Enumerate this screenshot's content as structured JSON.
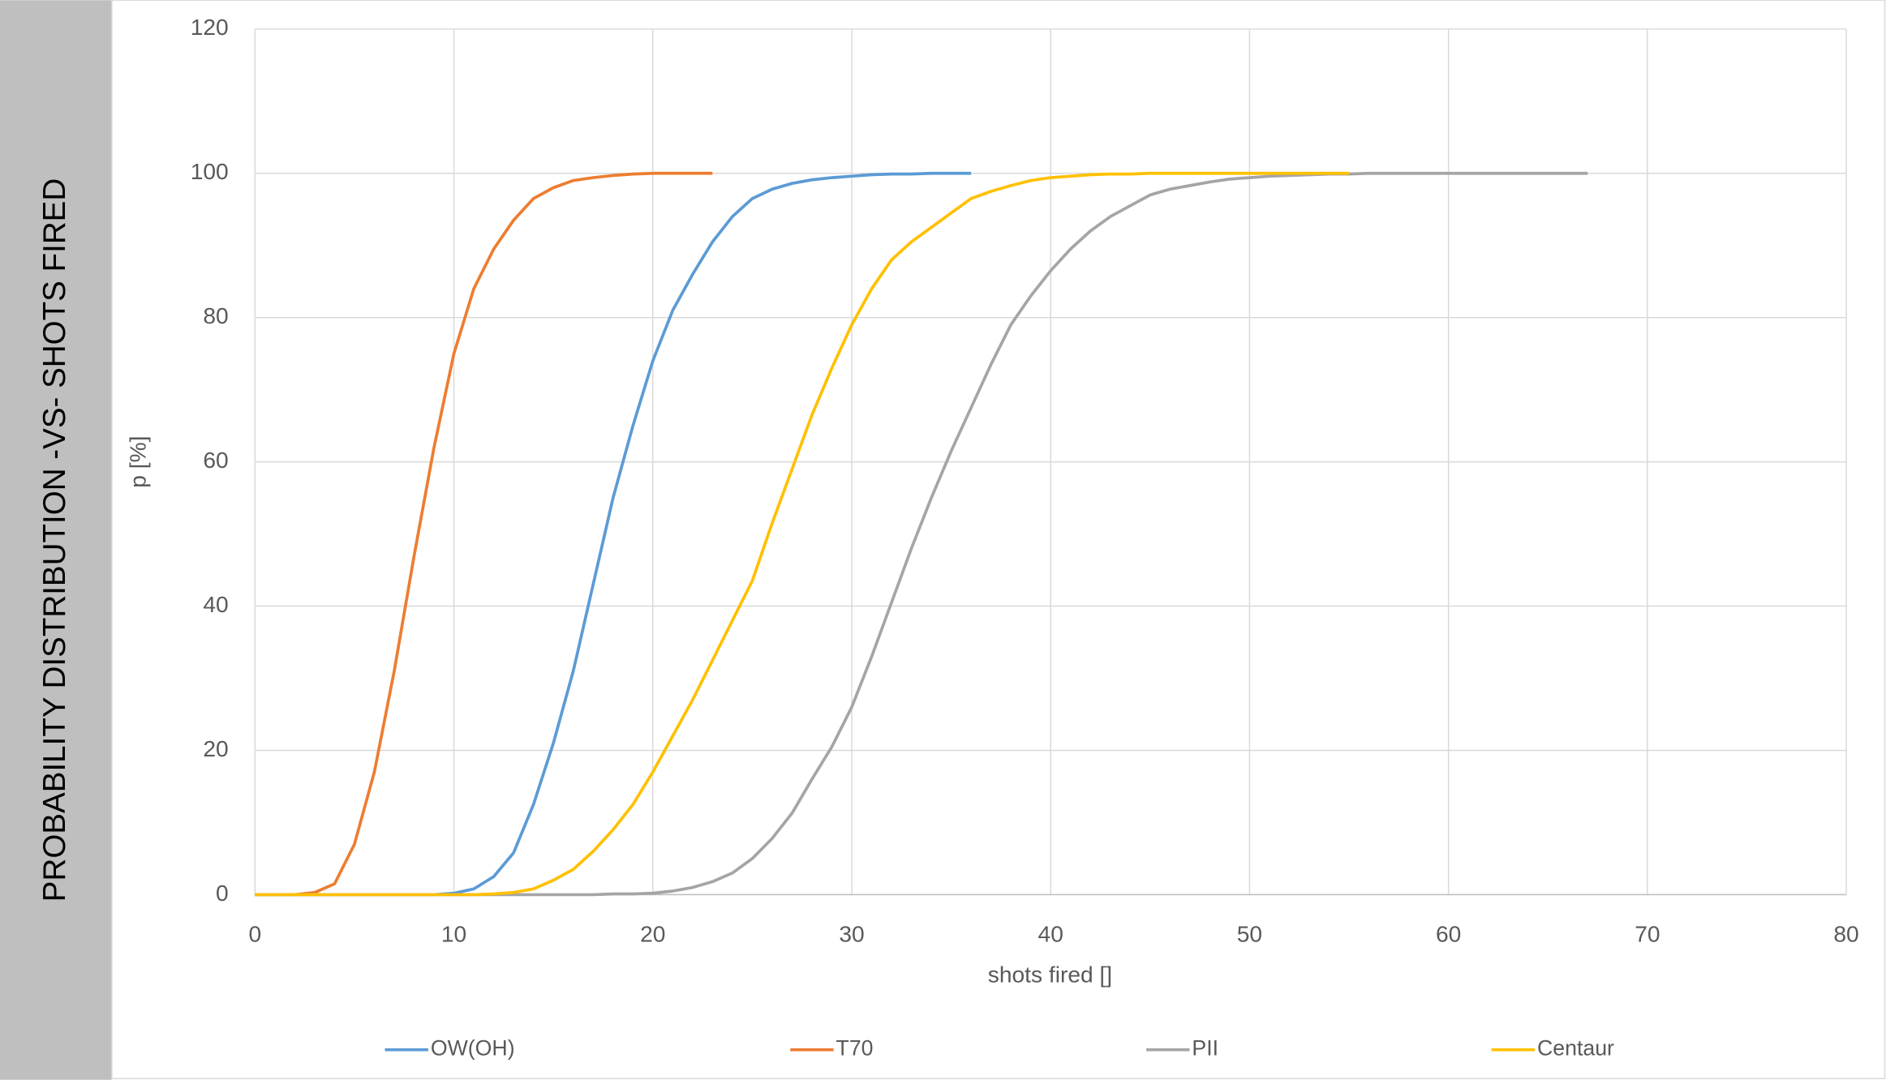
{
  "chart_data": {
    "type": "line",
    "title": "PROBABILITY DISTRIBUTION -VS- SHOTS FIRED",
    "xlabel": "shots fired []",
    "ylabel": "p [%]",
    "xlim": [
      0,
      80
    ],
    "xticks": [
      0,
      10,
      20,
      30,
      40,
      50,
      60,
      70,
      80
    ],
    "ylim": [
      0,
      120
    ],
    "yticks": [
      0,
      20,
      40,
      60,
      80,
      100,
      120
    ],
    "grid": true,
    "legend": "bottom",
    "series": [
      {
        "name": "OW(OH)",
        "color": "#5b9bd5",
        "x": [
          0,
          1,
          2,
          3,
          4,
          5,
          6,
          7,
          8,
          9,
          10,
          11,
          12,
          13,
          14,
          15,
          16,
          17,
          18,
          19,
          20,
          21,
          22,
          23,
          24,
          25,
          26,
          27,
          28,
          29,
          30,
          31,
          32,
          33,
          34,
          35,
          36
        ],
        "values": [
          0,
          0,
          0,
          0,
          0,
          0,
          0,
          0,
          0,
          0,
          0.2,
          0.8,
          2.5,
          5.8,
          12.5,
          21,
          31,
          43,
          55,
          65,
          74,
          81,
          86,
          90.5,
          94,
          96.5,
          97.8,
          98.6,
          99.1,
          99.4,
          99.6,
          99.8,
          99.9,
          99.9,
          100,
          100,
          100
        ]
      },
      {
        "name": "T70",
        "color": "#ed7d31",
        "x": [
          0,
          1,
          2,
          3,
          4,
          5,
          6,
          7,
          8,
          9,
          10,
          11,
          12,
          13,
          14,
          15,
          16,
          17,
          18,
          19,
          20,
          21,
          22,
          23
        ],
        "values": [
          0,
          0,
          0,
          0.3,
          1.5,
          7,
          17,
          31,
          47,
          62,
          75,
          84,
          89.5,
          93.5,
          96.5,
          98,
          99,
          99.4,
          99.7,
          99.9,
          100,
          100,
          100,
          100
        ]
      },
      {
        "name": "PII",
        "color": "#a5a5a5",
        "x": [
          0,
          1,
          2,
          3,
          4,
          5,
          6,
          7,
          8,
          9,
          10,
          11,
          12,
          13,
          14,
          15,
          16,
          17,
          18,
          19,
          20,
          21,
          22,
          23,
          24,
          25,
          26,
          27,
          28,
          29,
          30,
          31,
          32,
          33,
          34,
          35,
          36,
          37,
          38,
          39,
          40,
          41,
          42,
          43,
          44,
          45,
          46,
          47,
          48,
          49,
          50,
          51,
          52,
          53,
          54,
          55,
          56,
          57,
          58,
          59,
          60,
          61,
          62,
          63,
          64,
          65,
          66,
          67
        ],
        "values": [
          0,
          0,
          0,
          0,
          0,
          0,
          0,
          0,
          0,
          0,
          0,
          0,
          0,
          0,
          0,
          0,
          0,
          0,
          0.1,
          0.1,
          0.2,
          0.5,
          1,
          1.8,
          3,
          5,
          7.8,
          11.3,
          16,
          20.5,
          26,
          33,
          40.5,
          48,
          55,
          61.5,
          67.5,
          73.5,
          79,
          83,
          86.5,
          89.5,
          92,
          94,
          95.5,
          97,
          97.8,
          98.3,
          98.8,
          99.2,
          99.4,
          99.6,
          99.7,
          99.8,
          99.9,
          99.9,
          100,
          100,
          100,
          100,
          100,
          100,
          100,
          100,
          100,
          100,
          100,
          100
        ]
      },
      {
        "name": "Centaur",
        "color": "#ffc000",
        "x": [
          0,
          1,
          2,
          3,
          4,
          5,
          6,
          7,
          8,
          9,
          10,
          11,
          12,
          13,
          14,
          15,
          16,
          17,
          18,
          19,
          20,
          21,
          22,
          23,
          24,
          25,
          26,
          27,
          28,
          29,
          30,
          31,
          32,
          33,
          34,
          35,
          36,
          37,
          38,
          39,
          40,
          41,
          42,
          43,
          44,
          45,
          46,
          47,
          48,
          49,
          50,
          51,
          52,
          53,
          54,
          55
        ],
        "values": [
          0,
          0,
          0,
          0,
          0,
          0,
          0,
          0,
          0,
          0,
          0,
          0,
          0.1,
          0.3,
          0.8,
          2,
          3.5,
          6,
          9,
          12.5,
          17,
          22,
          27,
          32.5,
          38,
          43.5,
          51.5,
          59,
          66.5,
          73,
          79,
          84,
          88,
          90.5,
          92.5,
          94.5,
          96.5,
          97.5,
          98.3,
          99,
          99.4,
          99.6,
          99.8,
          99.9,
          99.9,
          100,
          100,
          100,
          100,
          100,
          100,
          100,
          100,
          100,
          100,
          100
        ]
      }
    ]
  }
}
